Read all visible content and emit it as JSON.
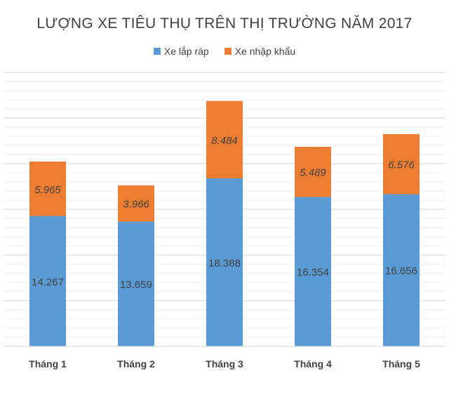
{
  "chart_data": {
    "type": "bar",
    "stacked": true,
    "title": "LƯỢNG XE TIÊU THỤ TRÊN THỊ TRƯỜNG NĂM 2017",
    "categories": [
      "Tháng 1",
      "Tháng 2",
      "Tháng 3",
      "Tháng 4",
      "Tháng 5"
    ],
    "series": [
      {
        "name": "Xe lắp ráp",
        "values": [
          14267,
          13659,
          18388,
          16354,
          16656
        ],
        "labels": [
          "14.267",
          "13.659",
          "18.388",
          "16.354",
          "16.656"
        ],
        "color": "#5B9BD5"
      },
      {
        "name": "Xe nhập khẩu",
        "values": [
          5965,
          3966,
          8484,
          5489,
          6576
        ],
        "labels": [
          "5.965",
          "3.966",
          "8.484",
          "5.489",
          "6.576"
        ],
        "color": "#ED7D31"
      }
    ],
    "ylim": [
      0,
      30000
    ],
    "grid": true,
    "minor_gridline_step": 1000,
    "major_gridline_step": 5000,
    "legend": "top"
  }
}
